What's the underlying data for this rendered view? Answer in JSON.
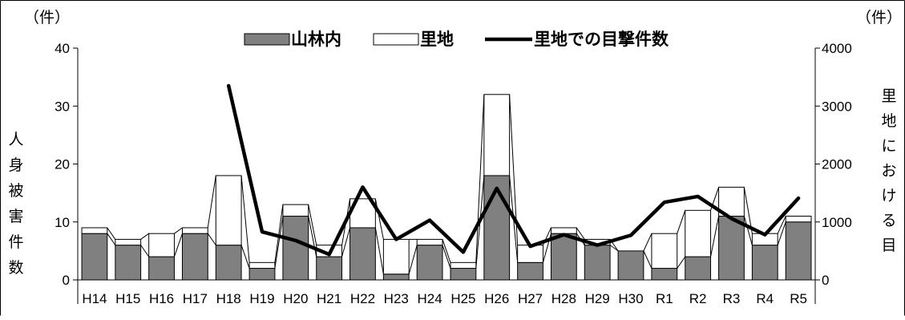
{
  "chart_data": {
    "type": "bar",
    "stacked": true,
    "categories": [
      "H14",
      "H15",
      "H16",
      "H17",
      "H18",
      "H19",
      "H20",
      "H21",
      "H22",
      "H23",
      "H24",
      "H25",
      "H26",
      "H27",
      "H28",
      "H29",
      "H30",
      "R1",
      "R2",
      "R3",
      "R4",
      "R5"
    ],
    "series": [
      {
        "name": "山林内",
        "axis": "left",
        "type": "bar",
        "color": "#808080",
        "values": [
          8,
          6,
          4,
          8,
          6,
          2,
          11,
          4,
          9,
          1,
          6,
          2,
          18,
          3,
          8,
          6,
          5,
          2,
          4,
          11,
          6,
          10
        ]
      },
      {
        "name": "里地",
        "axis": "left",
        "type": "bar",
        "color": "#ffffff",
        "values": [
          1,
          1,
          4,
          1,
          12,
          1,
          2,
          2,
          5,
          6,
          1,
          1,
          14,
          3,
          1,
          1,
          0,
          6,
          8,
          5,
          2,
          1
        ]
      },
      {
        "name": "里地での目撃件数",
        "axis": "right",
        "type": "line",
        "color": "#000000",
        "values": [
          null,
          null,
          null,
          null,
          3350,
          830,
          680,
          440,
          1600,
          700,
          1030,
          480,
          1580,
          580,
          780,
          600,
          770,
          1340,
          1440,
          1060,
          780,
          1410
        ]
      }
    ],
    "left_axis": {
      "unit": "（件）",
      "title": "人身被害件数",
      "ylim": [
        0,
        40
      ],
      "ticks": [
        0,
        10,
        20,
        30,
        40
      ]
    },
    "right_axis": {
      "unit": "（件）",
      "title": "里地における目",
      "ylim": [
        0,
        4000
      ],
      "ticks": [
        0,
        1000,
        2000,
        3000,
        4000
      ]
    },
    "legend": {
      "position": "top-center",
      "items": [
        "山林内",
        "里地",
        "里地での目撃件数"
      ]
    },
    "grid": false
  }
}
